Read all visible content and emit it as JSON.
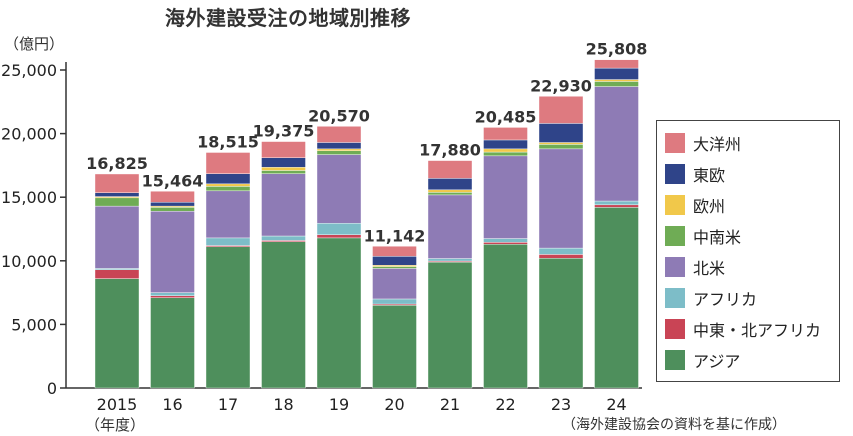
{
  "chart_data": {
    "type": "bar",
    "stacked": true,
    "title": "海外建設受注の地域別推移",
    "unit": "（億円）",
    "x_suffix": "（年度）",
    "source": "（海外建設協会の資料を基に作成）",
    "categories": [
      "2015",
      "16",
      "17",
      "18",
      "19",
      "20",
      "21",
      "22",
      "23",
      "24"
    ],
    "totals": [
      16825,
      15464,
      18515,
      19375,
      20570,
      11142,
      17880,
      20485,
      22930,
      25808
    ],
    "total_labels": [
      "16,825",
      "15,464",
      "18,515",
      "19,375",
      "20,570",
      "11,142",
      "17,880",
      "20,485",
      "22,930",
      "25,808"
    ],
    "ylim": [
      0,
      25000
    ],
    "y_ticks": [
      0,
      5000,
      10000,
      15000,
      20000,
      25000
    ],
    "y_tick_labels": [
      "0",
      "5,000",
      "10,000",
      "15,000",
      "20,000",
      "25,000"
    ],
    "legend_position": "right",
    "series": [
      {
        "name": "アジア",
        "color": "#4e8f5c",
        "values": [
          8600,
          7100,
          11100,
          11500,
          11800,
          6500,
          9900,
          11300,
          10200,
          14200
        ]
      },
      {
        "name": "中東・北アフリカ",
        "color": "#c94455",
        "values": [
          700,
          150,
          100,
          100,
          250,
          100,
          80,
          150,
          300,
          200
        ]
      },
      {
        "name": "アフリカ",
        "color": "#7dbdc8",
        "values": [
          100,
          250,
          600,
          350,
          900,
          400,
          200,
          300,
          500,
          300
        ]
      },
      {
        "name": "北米",
        "color": "#8e7bb5",
        "values": [
          4900,
          6400,
          3700,
          4900,
          5400,
          2400,
          5000,
          6500,
          7800,
          9000
        ]
      },
      {
        "name": "中南米",
        "color": "#6fac55",
        "values": [
          650,
          300,
          350,
          250,
          300,
          150,
          200,
          300,
          350,
          400
        ]
      },
      {
        "name": "欧州",
        "color": "#f1c84a",
        "values": [
          100,
          100,
          200,
          250,
          150,
          100,
          200,
          250,
          150,
          150
        ]
      },
      {
        "name": "東欧",
        "color": "#2f4489",
        "values": [
          300,
          300,
          800,
          750,
          500,
          700,
          900,
          700,
          1500,
          900
        ]
      },
      {
        "name": "大洋州",
        "color": "#de7a80",
        "values": [
          1475,
          864,
          1665,
          1275,
          1270,
          792,
          1400,
          985,
          2130,
          658
        ]
      }
    ]
  }
}
